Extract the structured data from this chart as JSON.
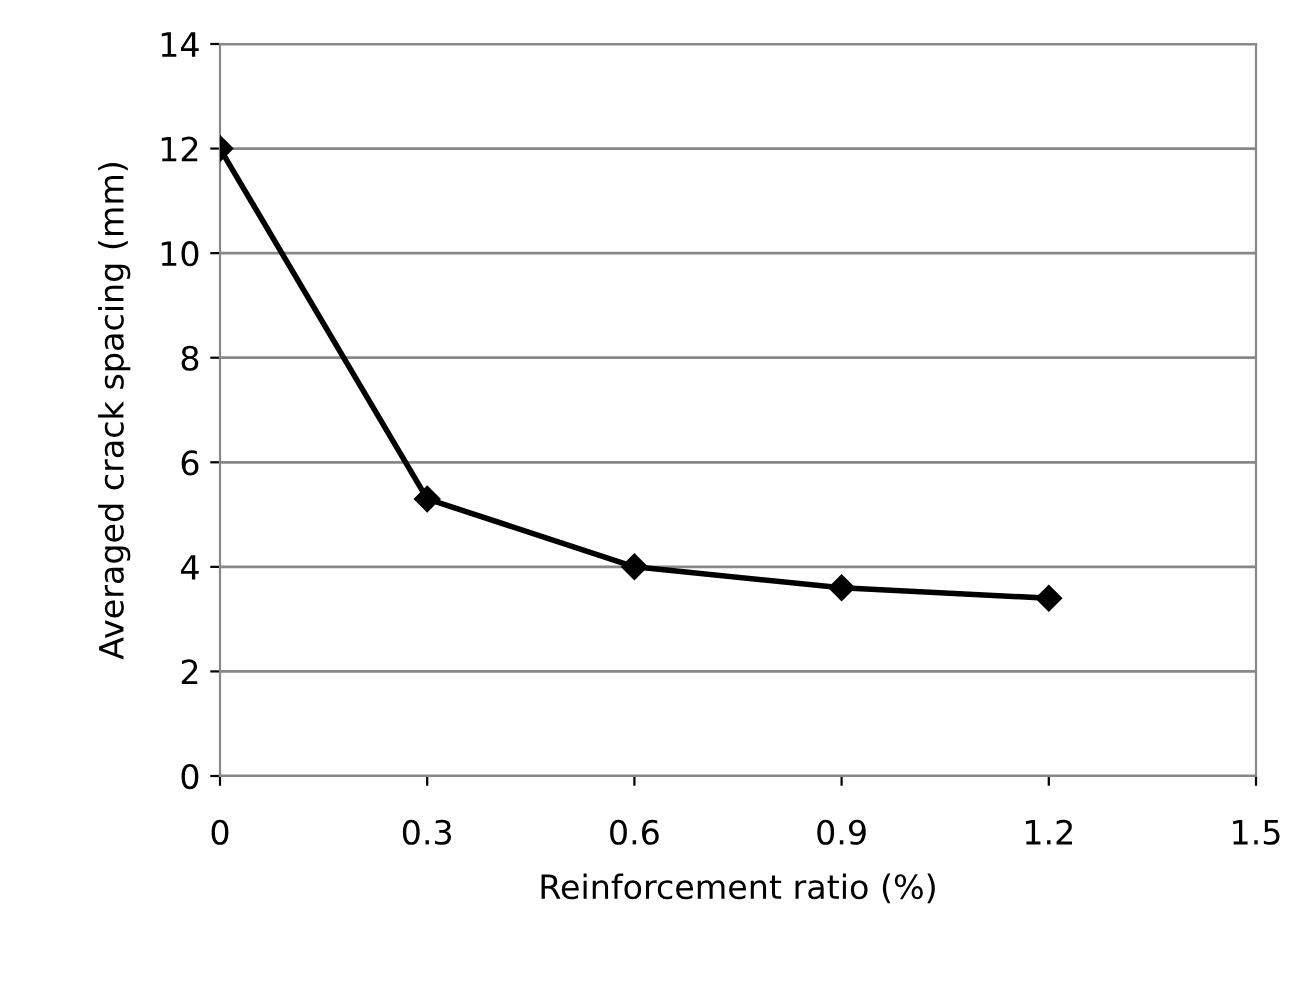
{
  "chart_data": {
    "type": "line",
    "xlabel": "Reinforcement ratio (%)",
    "ylabel": "Averaged crack spacing (mm)",
    "x": [
      0,
      0.3,
      0.6,
      0.9,
      1.2
    ],
    "series": [
      {
        "color": "#000000",
        "values": [
          12,
          5.3,
          4.0,
          3.6,
          3.4
        ]
      }
    ],
    "xlim": [
      0,
      1.5
    ],
    "xticks": [
      0,
      0.3,
      0.6,
      0.9,
      1.2,
      1.5
    ],
    "ylim": [
      0,
      14
    ],
    "yticks": [
      0,
      2,
      4,
      6,
      8,
      10,
      12,
      14
    ],
    "grid": "y",
    "marker": "diamond",
    "line_style": "solid"
  }
}
